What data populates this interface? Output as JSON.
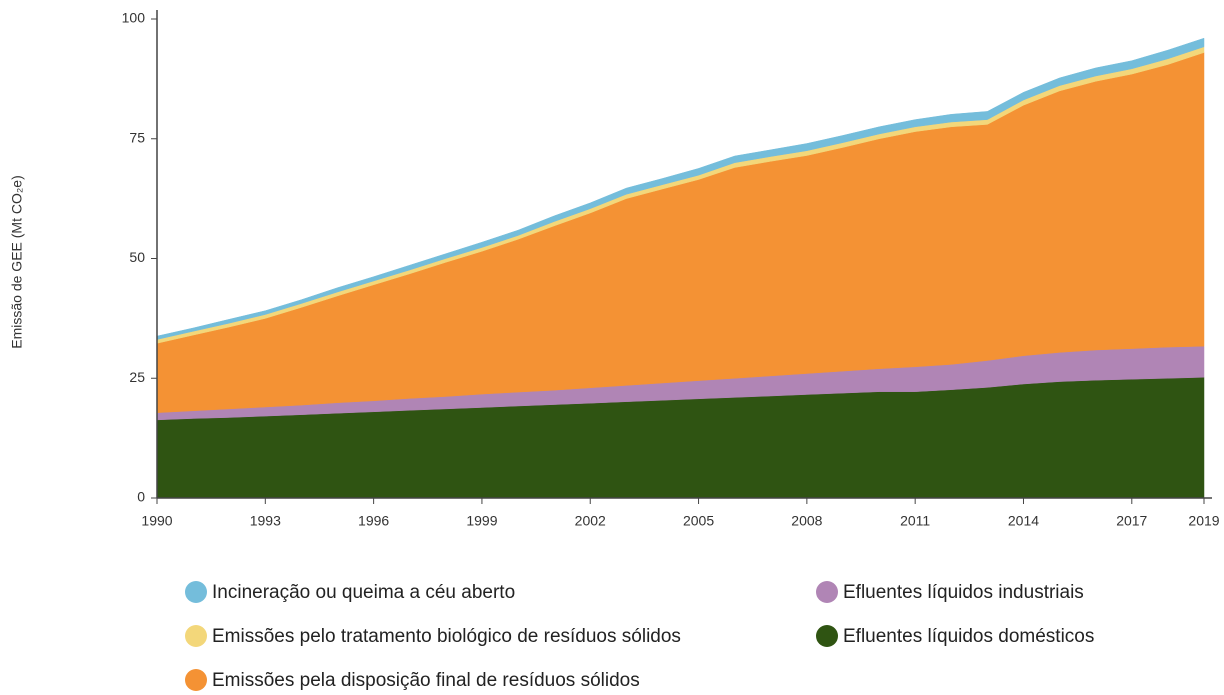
{
  "chart_data": {
    "type": "stacked_area",
    "y_label": "Emissão de GEE (Mt CO₂e)",
    "x": [
      1990,
      1991,
      1992,
      1993,
      1994,
      1995,
      1996,
      1997,
      1998,
      1999,
      2000,
      2001,
      2002,
      2003,
      2004,
      2005,
      2006,
      2007,
      2008,
      2009,
      2010,
      2011,
      2012,
      2013,
      2014,
      2015,
      2016,
      2017,
      2018,
      2019
    ],
    "xlim": [
      1990,
      2019
    ],
    "xticks": [
      1990,
      1993,
      1996,
      1999,
      2002,
      2005,
      2008,
      2011,
      2014,
      2017,
      2019
    ],
    "ylim": [
      0,
      100
    ],
    "yticks": [
      0,
      25,
      50,
      75,
      100
    ],
    "series": [
      {
        "name": "Efluentes líquidos domésticos",
        "color": "#2f5412",
        "values": [
          16.3,
          16.6,
          16.8,
          17.1,
          17.4,
          17.7,
          18.0,
          18.3,
          18.6,
          18.9,
          19.2,
          19.5,
          19.8,
          20.1,
          20.4,
          20.7,
          21.0,
          21.3,
          21.6,
          21.9,
          22.2,
          22.2,
          22.6,
          23.1,
          23.8,
          24.3,
          24.6,
          24.8,
          25.0,
          25.2
        ]
      },
      {
        "name": "Efluentes líquidos industriais",
        "color": "#b085b5",
        "values": [
          1.5,
          1.6,
          1.8,
          1.9,
          2.0,
          2.2,
          2.3,
          2.5,
          2.6,
          2.8,
          2.9,
          3.0,
          3.2,
          3.4,
          3.6,
          3.8,
          4.0,
          4.2,
          4.4,
          4.6,
          4.8,
          5.2,
          5.3,
          5.6,
          5.9,
          6.1,
          6.3,
          6.4,
          6.5,
          6.5
        ]
      },
      {
        "name": "Emissões pela disposição final de resíduos sólidos",
        "color": "#f49234",
        "values": [
          14.5,
          15.8,
          17.1,
          18.5,
          20.4,
          22.3,
          24.2,
          26.0,
          28.0,
          29.8,
          31.9,
          34.3,
          36.5,
          39.0,
          40.5,
          42.0,
          44.0,
          44.8,
          45.5,
          46.7,
          48.0,
          49.1,
          49.6,
          49.3,
          52.3,
          54.6,
          56.1,
          57.3,
          59.0,
          61.3
        ]
      },
      {
        "name": "Emissões pelo tratamento biológico de resíduos sólidos",
        "color": "#f3d77a",
        "values": [
          0.8,
          0.8,
          0.8,
          0.8,
          0.8,
          0.8,
          0.8,
          0.8,
          0.8,
          0.8,
          0.8,
          0.9,
          0.9,
          0.9,
          0.9,
          0.9,
          1.0,
          1.0,
          1.0,
          1.0,
          1.0,
          1.0,
          1.0,
          1.0,
          1.1,
          1.1,
          1.1,
          1.1,
          1.2,
          1.2
        ]
      },
      {
        "name": "Incineração ou queima a céu aberto",
        "color": "#74bddb",
        "values": [
          0.7,
          0.7,
          0.8,
          0.8,
          0.8,
          0.9,
          0.9,
          1.0,
          1.0,
          1.1,
          1.1,
          1.2,
          1.2,
          1.3,
          1.3,
          1.4,
          1.4,
          1.4,
          1.5,
          1.5,
          1.5,
          1.5,
          1.6,
          1.7,
          1.6,
          1.6,
          1.7,
          1.7,
          1.8,
          1.8
        ]
      }
    ]
  }
}
